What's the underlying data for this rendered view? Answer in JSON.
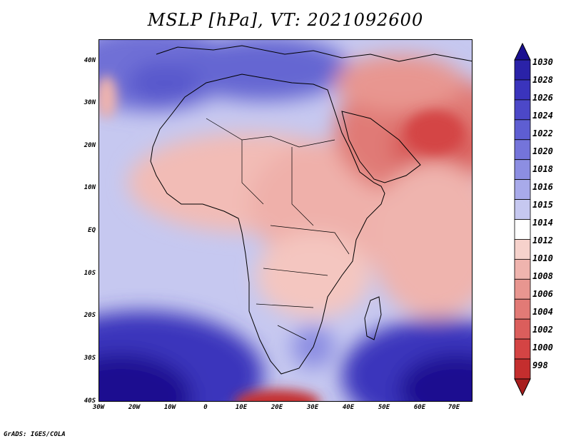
{
  "title": "MSLP [hPa], VT: 2021092600",
  "credit": "GrADS: IGES/COLA",
  "lat_ticks": [
    "40N",
    "30N",
    "20N",
    "10N",
    "EQ",
    "10S",
    "20S",
    "30S",
    "40S"
  ],
  "lon_ticks": [
    "30W",
    "20W",
    "10W",
    "0",
    "10E",
    "20E",
    "30E",
    "40E",
    "50E",
    "60E",
    "70E"
  ],
  "colorbar": {
    "labels": [
      "1030",
      "1028",
      "1026",
      "1024",
      "1022",
      "1020",
      "1018",
      "1016",
      "1015",
      "1014",
      "1012",
      "1010",
      "1008",
      "1006",
      "1004",
      "1002",
      "1000",
      "998"
    ],
    "colors": [
      "#1a1090",
      "#2a22a8",
      "#3a34bc",
      "#4c48c8",
      "#5e5ed2",
      "#7474da",
      "#8c8ee2",
      "#a8aaea",
      "#c6c8f0",
      "#ffffff",
      "#f6d2cc",
      "#efb4ae",
      "#e89690",
      "#e27a76",
      "#db5e5c",
      "#d44444",
      "#c42e2e",
      "#a81e1e"
    ]
  },
  "icons": {
    "map": "mslp-map",
    "colorbar": "colorbar-legend"
  }
}
